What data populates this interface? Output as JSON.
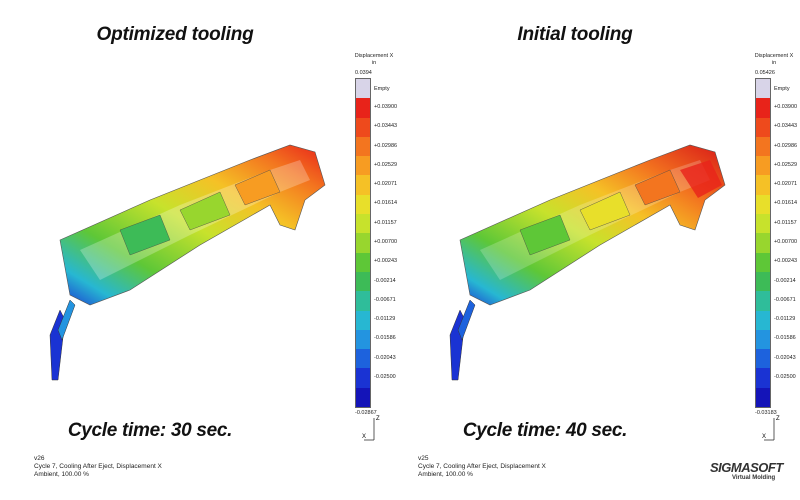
{
  "panels": [
    {
      "title": "Optimized tooling",
      "cycle_time": "Cycle time: 30 sec.",
      "legend": {
        "title_line1": "Displacement X",
        "title_line2": "in",
        "max": "0.0394",
        "empty": "Empty",
        "ticks": [
          "+0.03900",
          "+0.03443",
          "+0.02986",
          "+0.02529",
          "+0.02071",
          "+0.01614",
          "+0.01157",
          "+0.00700",
          "+0.00243",
          "-0.00214",
          "-0.00671",
          "-0.01129",
          "-0.01586",
          "-0.02043",
          "-0.02500"
        ],
        "min": "-0.02867"
      },
      "footer": [
        "v26",
        "Cycle 7, Cooling After Eject, Displacement X",
        "Ambient, 100.00 %"
      ]
    },
    {
      "title": "Initial tooling",
      "cycle_time": "Cycle time: 40 sec.",
      "legend": {
        "title_line1": "Displacement X",
        "title_line2": "in",
        "max": "0.05426",
        "empty": "Empty",
        "ticks": [
          "+0.03900",
          "+0.03443",
          "+0.02986",
          "+0.02529",
          "+0.02071",
          "+0.01614",
          "+0.01157",
          "+0.00700",
          "+0.00243",
          "-0.00214",
          "-0.00671",
          "-0.01129",
          "-0.01586",
          "-0.02043",
          "-0.02500"
        ],
        "min": "-0.03183"
      },
      "footer": [
        "v25",
        "Cycle 7, Cooling After Eject, Displacement X",
        "Ambient, 100.00 %"
      ]
    }
  ],
  "axes": {
    "z": "Z",
    "x": "X"
  },
  "logo": {
    "main": "SIGMASOFT",
    "sub": "Virtual Molding"
  },
  "colors": {
    "empty": "#d8d4e8",
    "bands": [
      "#e8231a",
      "#ee4a1c",
      "#f3751f",
      "#f79c22",
      "#f5c126",
      "#e8df2a",
      "#c7e22c",
      "#98d62e",
      "#5ec737",
      "#3dbb57",
      "#2fbd9a",
      "#27b7d2",
      "#2394e0",
      "#1d62dd",
      "#1a33d3",
      "#1414b8"
    ]
  }
}
